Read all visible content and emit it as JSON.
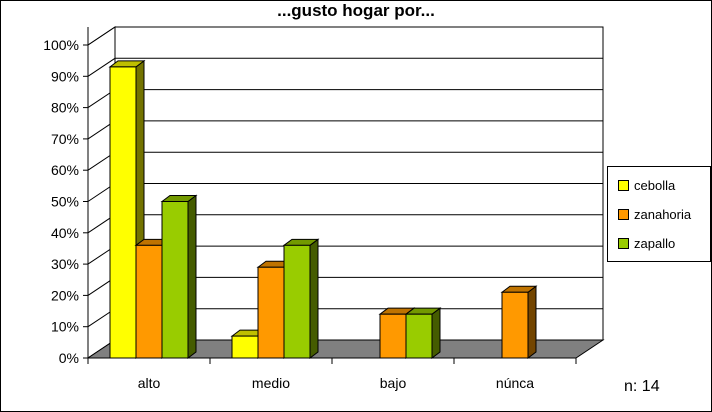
{
  "chart_data": {
    "type": "bar",
    "title": "...gusto hogar por...",
    "categories": [
      "alto",
      "medio",
      "bajo",
      "núnca"
    ],
    "series": [
      {
        "name": "cebolla",
        "values": [
          93,
          7,
          0,
          0
        ],
        "color": "#FFFF00"
      },
      {
        "name": "zanahoria",
        "values": [
          36,
          29,
          14,
          21
        ],
        "color": "#FF9900"
      },
      {
        "name": "zapallo",
        "values": [
          50,
          36,
          14,
          0
        ],
        "color": "#99CC00"
      }
    ],
    "y_ticks": [
      "0%",
      "10%",
      "20%",
      "30%",
      "40%",
      "50%",
      "60%",
      "70%",
      "80%",
      "90%",
      "100%"
    ],
    "ylim": [
      0,
      100
    ],
    "legend_position": "right",
    "grid": true,
    "three_d": true,
    "floor_color": "#808080"
  },
  "annotation": {
    "text": "n: 14"
  }
}
